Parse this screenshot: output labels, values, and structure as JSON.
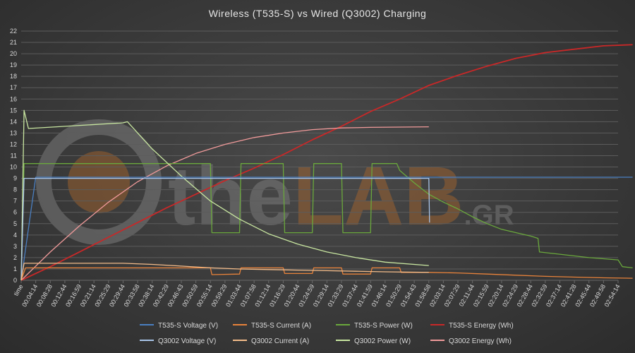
{
  "chart_data": {
    "type": "line",
    "title": "Wireless (T535-S)  vs Wired (Q3002)  Charging",
    "xlabel": "",
    "ylabel": "",
    "ylim": [
      0,
      22
    ],
    "y_ticks": [
      0,
      1,
      2,
      3,
      4,
      5,
      6,
      7,
      8,
      9,
      10,
      11,
      12,
      13,
      14,
      15,
      16,
      17,
      18,
      19,
      20,
      21,
      22
    ],
    "x_ticks": [
      "time",
      "00:04:14",
      "00:08:28",
      "00:12:44",
      "00:16:59",
      "00:21:14",
      "00:25:29",
      "00:29:44",
      "00:33:58",
      "00:38:14",
      "00:42:29",
      "00:46:43",
      "00:50:59",
      "00:55:14",
      "00:59:29",
      "01:03:44",
      "01:07:58",
      "01:12:14",
      "01:16:29",
      "01:20:44",
      "01:24:59",
      "01:29:14",
      "01:33:29",
      "01:37:44",
      "01:41:59",
      "01:46:14",
      "01:50:29",
      "01:54:43",
      "01:58:58",
      "02:03:14",
      "02:07:29",
      "02:11:44",
      "02:15:59",
      "02:20:14",
      "02:24:29",
      "02:28:44",
      "02:32:59",
      "02:37:14",
      "02:41:28",
      "02:45:44",
      "02:49:58",
      "02:54:14"
    ],
    "grid": true,
    "legend_position": "bottom",
    "watermark": "theLAB.GR",
    "series": [
      {
        "name": "T535-S Voltage (V)",
        "color": "#4a7fc1",
        "points": [
          [
            0,
            0
          ],
          [
            1,
            9.1
          ],
          [
            41,
            9.1
          ],
          [
            42,
            9.1
          ]
        ]
      },
      {
        "name": "T535-S Current (A)",
        "color": "#e8823a",
        "points": [
          [
            0,
            0
          ],
          [
            0.3,
            1.1
          ],
          [
            13,
            1.1
          ],
          [
            13.1,
            0.5
          ],
          [
            15,
            0.55
          ],
          [
            15.1,
            1.1
          ],
          [
            18,
            1.1
          ],
          [
            18.1,
            0.6
          ],
          [
            20,
            0.6
          ],
          [
            20.1,
            1.1
          ],
          [
            22,
            1.1
          ],
          [
            22.1,
            0.55
          ],
          [
            24,
            0.55
          ],
          [
            24.1,
            1.1
          ],
          [
            26,
            1.1
          ],
          [
            26.1,
            0.7
          ],
          [
            28,
            0.7
          ],
          [
            30,
            0.65
          ],
          [
            32,
            0.55
          ],
          [
            34,
            0.45
          ],
          [
            36,
            0.35
          ],
          [
            38,
            0.28
          ],
          [
            40,
            0.22
          ],
          [
            42,
            0.18
          ]
        ]
      },
      {
        "name": "T535-S Power (W)",
        "color": "#6aa83c",
        "points": [
          [
            0,
            0
          ],
          [
            0.2,
            10.3
          ],
          [
            13,
            10.3
          ],
          [
            13.1,
            4.2
          ],
          [
            15,
            4.2
          ],
          [
            15.1,
            10.3
          ],
          [
            18,
            10.3
          ],
          [
            18.1,
            4.2
          ],
          [
            20,
            4.2
          ],
          [
            20.1,
            10.3
          ],
          [
            22,
            10.3
          ],
          [
            22.1,
            4.2
          ],
          [
            24,
            4.2
          ],
          [
            24.1,
            10.3
          ],
          [
            25.8,
            10.3
          ],
          [
            26,
            9.7
          ],
          [
            27,
            8.6
          ],
          [
            28,
            7.6
          ],
          [
            29,
            6.9
          ],
          [
            30,
            6.3
          ],
          [
            31,
            5.6
          ],
          [
            32,
            5.0
          ],
          [
            33,
            4.5
          ],
          [
            34,
            4.2
          ],
          [
            35,
            3.9
          ],
          [
            35.5,
            3.7
          ],
          [
            35.6,
            2.5
          ],
          [
            37,
            2.3
          ],
          [
            39,
            2.0
          ],
          [
            41,
            1.8
          ],
          [
            41.3,
            1.2
          ],
          [
            42,
            1.1
          ]
        ]
      },
      {
        "name": "T535-S Energy (Wh)",
        "color": "#c82828",
        "points": [
          [
            0,
            0
          ],
          [
            2,
            1.2
          ],
          [
            4,
            2.5
          ],
          [
            6,
            3.8
          ],
          [
            8,
            5.1
          ],
          [
            10,
            6.4
          ],
          [
            12,
            7.6
          ],
          [
            14,
            8.8
          ],
          [
            16,
            9.9
          ],
          [
            18,
            11.1
          ],
          [
            20,
            12.4
          ],
          [
            22,
            13.6
          ],
          [
            24,
            14.9
          ],
          [
            26,
            16.0
          ],
          [
            28,
            17.2
          ],
          [
            30,
            18.1
          ],
          [
            32,
            18.9
          ],
          [
            34,
            19.6
          ],
          [
            36,
            20.1
          ],
          [
            38,
            20.4
          ],
          [
            40,
            20.7
          ],
          [
            42,
            20.8
          ]
        ]
      },
      {
        "name": "Q3002 Voltage (V)",
        "color": "#a8c4e8",
        "points": [
          [
            0,
            0
          ],
          [
            0.2,
            9.0
          ],
          [
            28,
            9.0
          ],
          [
            28.05,
            5.1
          ]
        ]
      },
      {
        "name": "Q3002 Current (A)",
        "color": "#f4bc8a",
        "points": [
          [
            0,
            0
          ],
          [
            0.2,
            1.5
          ],
          [
            7,
            1.5
          ],
          [
            9,
            1.4
          ],
          [
            11,
            1.25
          ],
          [
            13,
            1.1
          ],
          [
            15,
            1.0
          ],
          [
            17,
            0.95
          ],
          [
            19,
            0.9
          ],
          [
            21,
            0.85
          ],
          [
            23,
            0.8
          ],
          [
            25,
            0.75
          ],
          [
            28,
            0.7
          ]
        ]
      },
      {
        "name": "Q3002 Power (W)",
        "color": "#c8e6a0",
        "points": [
          [
            0,
            0
          ],
          [
            0.2,
            15.0
          ],
          [
            0.5,
            13.4
          ],
          [
            7,
            13.9
          ],
          [
            7.3,
            14.0
          ],
          [
            9,
            11.6
          ],
          [
            11,
            9.2
          ],
          [
            13,
            7.0
          ],
          [
            15,
            5.4
          ],
          [
            17,
            4.1
          ],
          [
            19,
            3.2
          ],
          [
            21,
            2.5
          ],
          [
            23,
            2.0
          ],
          [
            25,
            1.6
          ],
          [
            28,
            1.3
          ]
        ]
      },
      {
        "name": "Q3002 Energy (Wh)",
        "color": "#f09a9a",
        "points": [
          [
            0,
            0
          ],
          [
            2,
            2.5
          ],
          [
            4,
            4.8
          ],
          [
            6,
            6.9
          ],
          [
            8,
            8.7
          ],
          [
            10,
            10.1
          ],
          [
            12,
            11.2
          ],
          [
            14,
            12.0
          ],
          [
            16,
            12.6
          ],
          [
            18,
            13.0
          ],
          [
            20,
            13.3
          ],
          [
            22,
            13.45
          ],
          [
            24,
            13.5
          ],
          [
            28,
            13.55
          ]
        ]
      }
    ]
  }
}
